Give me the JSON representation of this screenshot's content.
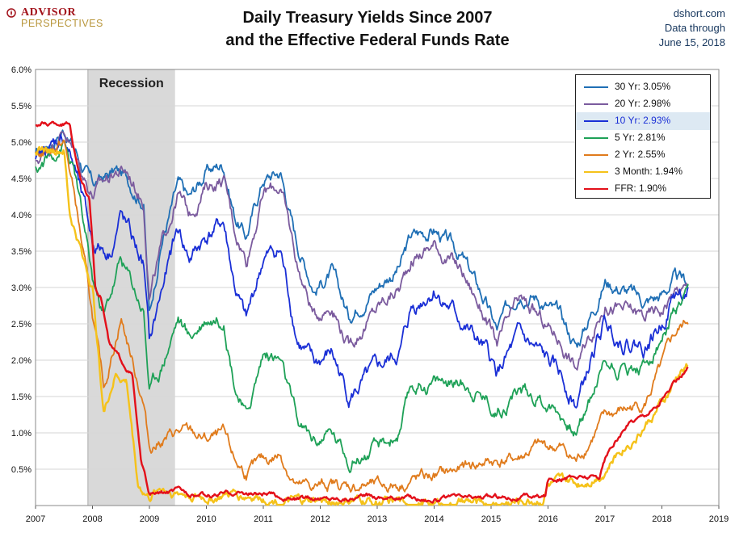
{
  "header": {
    "logo_top": "ADVISOR",
    "logo_bottom": "PERSPECTIVES",
    "title_line1": "Daily Treasury Yields Since 2007",
    "title_line2": "and the Effective Federal Funds Rate",
    "source_line1": "dshort.com",
    "source_line2": "Data through",
    "source_line3": "June 15, 2018"
  },
  "chart_data": {
    "type": "line",
    "title": "Daily Treasury Yields Since 2007 and the Effective Federal Funds Rate",
    "xlabel": "",
    "ylabel": "",
    "xlim": [
      2007,
      2019
    ],
    "ylim": [
      0,
      6.0
    ],
    "x_ticks": [
      "2007",
      "2008",
      "2009",
      "2010",
      "2011",
      "2012",
      "2013",
      "2014",
      "2015",
      "2016",
      "2017",
      "2018",
      "2019"
    ],
    "y_ticks": [
      "0.5%",
      "1.0%",
      "1.5%",
      "2.0%",
      "2.5%",
      "3.0%",
      "3.5%",
      "4.0%",
      "4.5%",
      "5.0%",
      "5.5%",
      "6.0%"
    ],
    "recession": {
      "label": "Recession",
      "start": 2007.92,
      "end": 2009.45
    },
    "legend_position": "top-right",
    "legend_highlight": "10 Yr: 2.93%",
    "series": [
      {
        "name": "30 Yr: 3.05%",
        "color": "#1f6fb5",
        "noise": 0.06,
        "points": [
          [
            2007,
            4.8
          ],
          [
            2007.5,
            5.2
          ],
          [
            2007.7,
            4.9
          ],
          [
            2008.0,
            4.4
          ],
          [
            2008.4,
            4.6
          ],
          [
            2008.6,
            4.5
          ],
          [
            2008.9,
            4.2
          ],
          [
            2009.0,
            2.6
          ],
          [
            2009.2,
            3.6
          ],
          [
            2009.5,
            4.4
          ],
          [
            2009.7,
            4.2
          ],
          [
            2010.0,
            4.6
          ],
          [
            2010.3,
            4.7
          ],
          [
            2010.5,
            4.0
          ],
          [
            2010.7,
            3.7
          ],
          [
            2011.0,
            4.5
          ],
          [
            2011.3,
            4.6
          ],
          [
            2011.6,
            3.6
          ],
          [
            2011.9,
            3.0
          ],
          [
            2012.2,
            3.2
          ],
          [
            2012.5,
            2.6
          ],
          [
            2012.8,
            2.9
          ],
          [
            2013.1,
            3.1
          ],
          [
            2013.4,
            3.3
          ],
          [
            2013.6,
            3.7
          ],
          [
            2014.0,
            3.8
          ],
          [
            2014.5,
            3.4
          ],
          [
            2014.9,
            2.8
          ],
          [
            2015.1,
            2.4
          ],
          [
            2015.5,
            3.0
          ],
          [
            2015.8,
            2.9
          ],
          [
            2016.2,
            2.6
          ],
          [
            2016.5,
            2.2
          ],
          [
            2016.9,
            2.9
          ],
          [
            2017.0,
            3.1
          ],
          [
            2017.3,
            3.0
          ],
          [
            2017.7,
            2.8
          ],
          [
            2018.0,
            2.9
          ],
          [
            2018.2,
            3.1
          ],
          [
            2018.46,
            3.05
          ]
        ]
      },
      {
        "name": "20 Yr: 2.98%",
        "color": "#7b5b9e",
        "noise": 0.06,
        "points": [
          [
            2007,
            4.7
          ],
          [
            2007.5,
            5.2
          ],
          [
            2007.7,
            4.8
          ],
          [
            2008.0,
            4.3
          ],
          [
            2008.4,
            4.6
          ],
          [
            2008.6,
            4.6
          ],
          [
            2008.9,
            4.2
          ],
          [
            2009.0,
            2.9
          ],
          [
            2009.2,
            3.5
          ],
          [
            2009.5,
            4.3
          ],
          [
            2009.7,
            4.0
          ],
          [
            2010.0,
            4.4
          ],
          [
            2010.3,
            4.5
          ],
          [
            2010.5,
            3.8
          ],
          [
            2010.7,
            3.4
          ],
          [
            2011.0,
            4.3
          ],
          [
            2011.3,
            4.4
          ],
          [
            2011.6,
            3.3
          ],
          [
            2011.9,
            2.6
          ],
          [
            2012.2,
            2.8
          ],
          [
            2012.5,
            2.2
          ],
          [
            2012.8,
            2.5
          ],
          [
            2013.1,
            2.8
          ],
          [
            2013.4,
            3.0
          ],
          [
            2013.6,
            3.4
          ],
          [
            2014.0,
            3.6
          ],
          [
            2014.5,
            3.2
          ],
          [
            2014.9,
            2.6
          ],
          [
            2015.1,
            2.2
          ],
          [
            2015.5,
            2.8
          ],
          [
            2015.8,
            2.6
          ],
          [
            2016.2,
            2.3
          ],
          [
            2016.5,
            1.9
          ],
          [
            2016.9,
            2.6
          ],
          [
            2017.0,
            2.8
          ],
          [
            2017.3,
            2.7
          ],
          [
            2017.7,
            2.6
          ],
          [
            2018.0,
            2.7
          ],
          [
            2018.2,
            2.95
          ],
          [
            2018.46,
            2.98
          ]
        ]
      },
      {
        "name": "10 Yr: 2.93%",
        "color": "#1a2fd6",
        "noise": 0.07,
        "points": [
          [
            2007,
            4.7
          ],
          [
            2007.5,
            5.1
          ],
          [
            2007.7,
            4.6
          ],
          [
            2008.0,
            3.6
          ],
          [
            2008.3,
            3.5
          ],
          [
            2008.5,
            4.0
          ],
          [
            2008.9,
            3.3
          ],
          [
            2009.0,
            2.2
          ],
          [
            2009.2,
            2.9
          ],
          [
            2009.5,
            3.8
          ],
          [
            2009.7,
            3.4
          ],
          [
            2010.0,
            3.7
          ],
          [
            2010.3,
            3.9
          ],
          [
            2010.5,
            3.0
          ],
          [
            2010.7,
            2.5
          ],
          [
            2011.0,
            3.4
          ],
          [
            2011.3,
            3.5
          ],
          [
            2011.6,
            2.3
          ],
          [
            2011.9,
            1.9
          ],
          [
            2012.2,
            2.1
          ],
          [
            2012.5,
            1.5
          ],
          [
            2012.8,
            1.7
          ],
          [
            2013.1,
            1.9
          ],
          [
            2013.4,
            2.1
          ],
          [
            2013.6,
            2.7
          ],
          [
            2014.0,
            3.0
          ],
          [
            2014.5,
            2.5
          ],
          [
            2014.9,
            2.1
          ],
          [
            2015.1,
            1.8
          ],
          [
            2015.5,
            2.3
          ],
          [
            2015.8,
            2.1
          ],
          [
            2016.2,
            1.8
          ],
          [
            2016.5,
            1.4
          ],
          [
            2016.9,
            2.3
          ],
          [
            2017.0,
            2.5
          ],
          [
            2017.3,
            2.3
          ],
          [
            2017.7,
            2.2
          ],
          [
            2018.0,
            2.5
          ],
          [
            2018.2,
            2.9
          ],
          [
            2018.46,
            2.93
          ]
        ]
      },
      {
        "name": "5 Yr: 2.81%",
        "color": "#1ea157",
        "noise": 0.06,
        "points": [
          [
            2007,
            4.6
          ],
          [
            2007.5,
            5.0
          ],
          [
            2007.7,
            4.5
          ],
          [
            2008.0,
            3.1
          ],
          [
            2008.2,
            2.6
          ],
          [
            2008.5,
            3.4
          ],
          [
            2008.9,
            2.7
          ],
          [
            2009.0,
            1.6
          ],
          [
            2009.2,
            1.9
          ],
          [
            2009.5,
            2.6
          ],
          [
            2009.7,
            2.3
          ],
          [
            2010.0,
            2.6
          ],
          [
            2010.3,
            2.6
          ],
          [
            2010.5,
            1.7
          ],
          [
            2010.7,
            1.2
          ],
          [
            2011.0,
            2.1
          ],
          [
            2011.3,
            2.0
          ],
          [
            2011.6,
            1.1
          ],
          [
            2011.9,
            0.9
          ],
          [
            2012.2,
            1.0
          ],
          [
            2012.5,
            0.65
          ],
          [
            2012.8,
            0.7
          ],
          [
            2013.1,
            0.8
          ],
          [
            2013.4,
            1.0
          ],
          [
            2013.6,
            1.6
          ],
          [
            2014.0,
            1.7
          ],
          [
            2014.5,
            1.7
          ],
          [
            2014.9,
            1.5
          ],
          [
            2015.1,
            1.3
          ],
          [
            2015.5,
            1.6
          ],
          [
            2015.8,
            1.5
          ],
          [
            2016.2,
            1.3
          ],
          [
            2016.5,
            1.0
          ],
          [
            2016.9,
            1.8
          ],
          [
            2017.0,
            2.0
          ],
          [
            2017.3,
            1.9
          ],
          [
            2017.7,
            1.9
          ],
          [
            2018.0,
            2.3
          ],
          [
            2018.2,
            2.6
          ],
          [
            2018.46,
            2.81
          ]
        ]
      },
      {
        "name": "2 Yr: 2.55%",
        "color": "#e07b1c",
        "noise": 0.05,
        "points": [
          [
            2007,
            4.8
          ],
          [
            2007.5,
            5.0
          ],
          [
            2007.7,
            4.2
          ],
          [
            2008.0,
            2.6
          ],
          [
            2008.2,
            1.6
          ],
          [
            2008.5,
            2.6
          ],
          [
            2008.9,
            1.4
          ],
          [
            2009.0,
            0.8
          ],
          [
            2009.2,
            0.9
          ],
          [
            2009.5,
            1.0
          ],
          [
            2009.7,
            1.0
          ],
          [
            2010.0,
            0.9
          ],
          [
            2010.3,
            0.95
          ],
          [
            2010.5,
            0.6
          ],
          [
            2010.7,
            0.45
          ],
          [
            2011.0,
            0.6
          ],
          [
            2011.3,
            0.7
          ],
          [
            2011.6,
            0.25
          ],
          [
            2011.9,
            0.25
          ],
          [
            2012.2,
            0.3
          ],
          [
            2012.5,
            0.25
          ],
          [
            2012.8,
            0.28
          ],
          [
            2013.1,
            0.25
          ],
          [
            2013.4,
            0.3
          ],
          [
            2013.6,
            0.35
          ],
          [
            2014.0,
            0.4
          ],
          [
            2014.5,
            0.5
          ],
          [
            2014.9,
            0.6
          ],
          [
            2015.1,
            0.6
          ],
          [
            2015.5,
            0.65
          ],
          [
            2015.8,
            0.8
          ],
          [
            2016.2,
            0.8
          ],
          [
            2016.5,
            0.6
          ],
          [
            2016.9,
            1.1
          ],
          [
            2017.0,
            1.2
          ],
          [
            2017.3,
            1.3
          ],
          [
            2017.7,
            1.4
          ],
          [
            2018.0,
            1.9
          ],
          [
            2018.2,
            2.3
          ],
          [
            2018.46,
            2.55
          ]
        ]
      },
      {
        "name": "3 Month: 1.94%",
        "color": "#f5c21a",
        "noise": 0.04,
        "points": [
          [
            2007,
            4.9
          ],
          [
            2007.5,
            4.9
          ],
          [
            2007.6,
            4.0
          ],
          [
            2007.8,
            3.5
          ],
          [
            2008.0,
            3.0
          ],
          [
            2008.2,
            1.3
          ],
          [
            2008.4,
            1.8
          ],
          [
            2008.6,
            1.7
          ],
          [
            2008.8,
            0.3
          ],
          [
            2009.0,
            0.1
          ],
          [
            2009.2,
            0.25
          ],
          [
            2009.5,
            0.18
          ],
          [
            2010.0,
            0.1
          ],
          [
            2010.5,
            0.15
          ],
          [
            2011.0,
            0.12
          ],
          [
            2011.5,
            0.03
          ],
          [
            2012.0,
            0.05
          ],
          [
            2013.0,
            0.05
          ],
          [
            2014.0,
            0.03
          ],
          [
            2015.0,
            0.02
          ],
          [
            2015.9,
            0.1
          ],
          [
            2016.0,
            0.3
          ],
          [
            2016.5,
            0.3
          ],
          [
            2016.9,
            0.45
          ],
          [
            2017.0,
            0.5
          ],
          [
            2017.3,
            0.8
          ],
          [
            2017.6,
            1.0
          ],
          [
            2017.9,
            1.3
          ],
          [
            2018.1,
            1.5
          ],
          [
            2018.3,
            1.8
          ],
          [
            2018.46,
            1.94
          ]
        ]
      },
      {
        "name": "FFR: 1.90%",
        "color": "#e3101a",
        "noise": 0.02,
        "points": [
          [
            2007,
            5.25
          ],
          [
            2007.6,
            5.25
          ],
          [
            2007.7,
            4.8
          ],
          [
            2007.8,
            4.5
          ],
          [
            2007.95,
            4.2
          ],
          [
            2008.05,
            3.0
          ],
          [
            2008.15,
            2.9
          ],
          [
            2008.3,
            2.2
          ],
          [
            2008.5,
            2.0
          ],
          [
            2008.7,
            1.8
          ],
          [
            2008.85,
            0.6
          ],
          [
            2009.0,
            0.15
          ],
          [
            2009.5,
            0.2
          ],
          [
            2010.0,
            0.13
          ],
          [
            2010.5,
            0.18
          ],
          [
            2011.0,
            0.16
          ],
          [
            2011.5,
            0.09
          ],
          [
            2012.0,
            0.1
          ],
          [
            2013.0,
            0.13
          ],
          [
            2014.0,
            0.09
          ],
          [
            2015.0,
            0.12
          ],
          [
            2015.95,
            0.13
          ],
          [
            2016.0,
            0.37
          ],
          [
            2016.9,
            0.4
          ],
          [
            2017.0,
            0.65
          ],
          [
            2017.2,
            0.9
          ],
          [
            2017.45,
            1.15
          ],
          [
            2017.95,
            1.4
          ],
          [
            2018.2,
            1.65
          ],
          [
            2018.46,
            1.9
          ]
        ]
      }
    ]
  }
}
